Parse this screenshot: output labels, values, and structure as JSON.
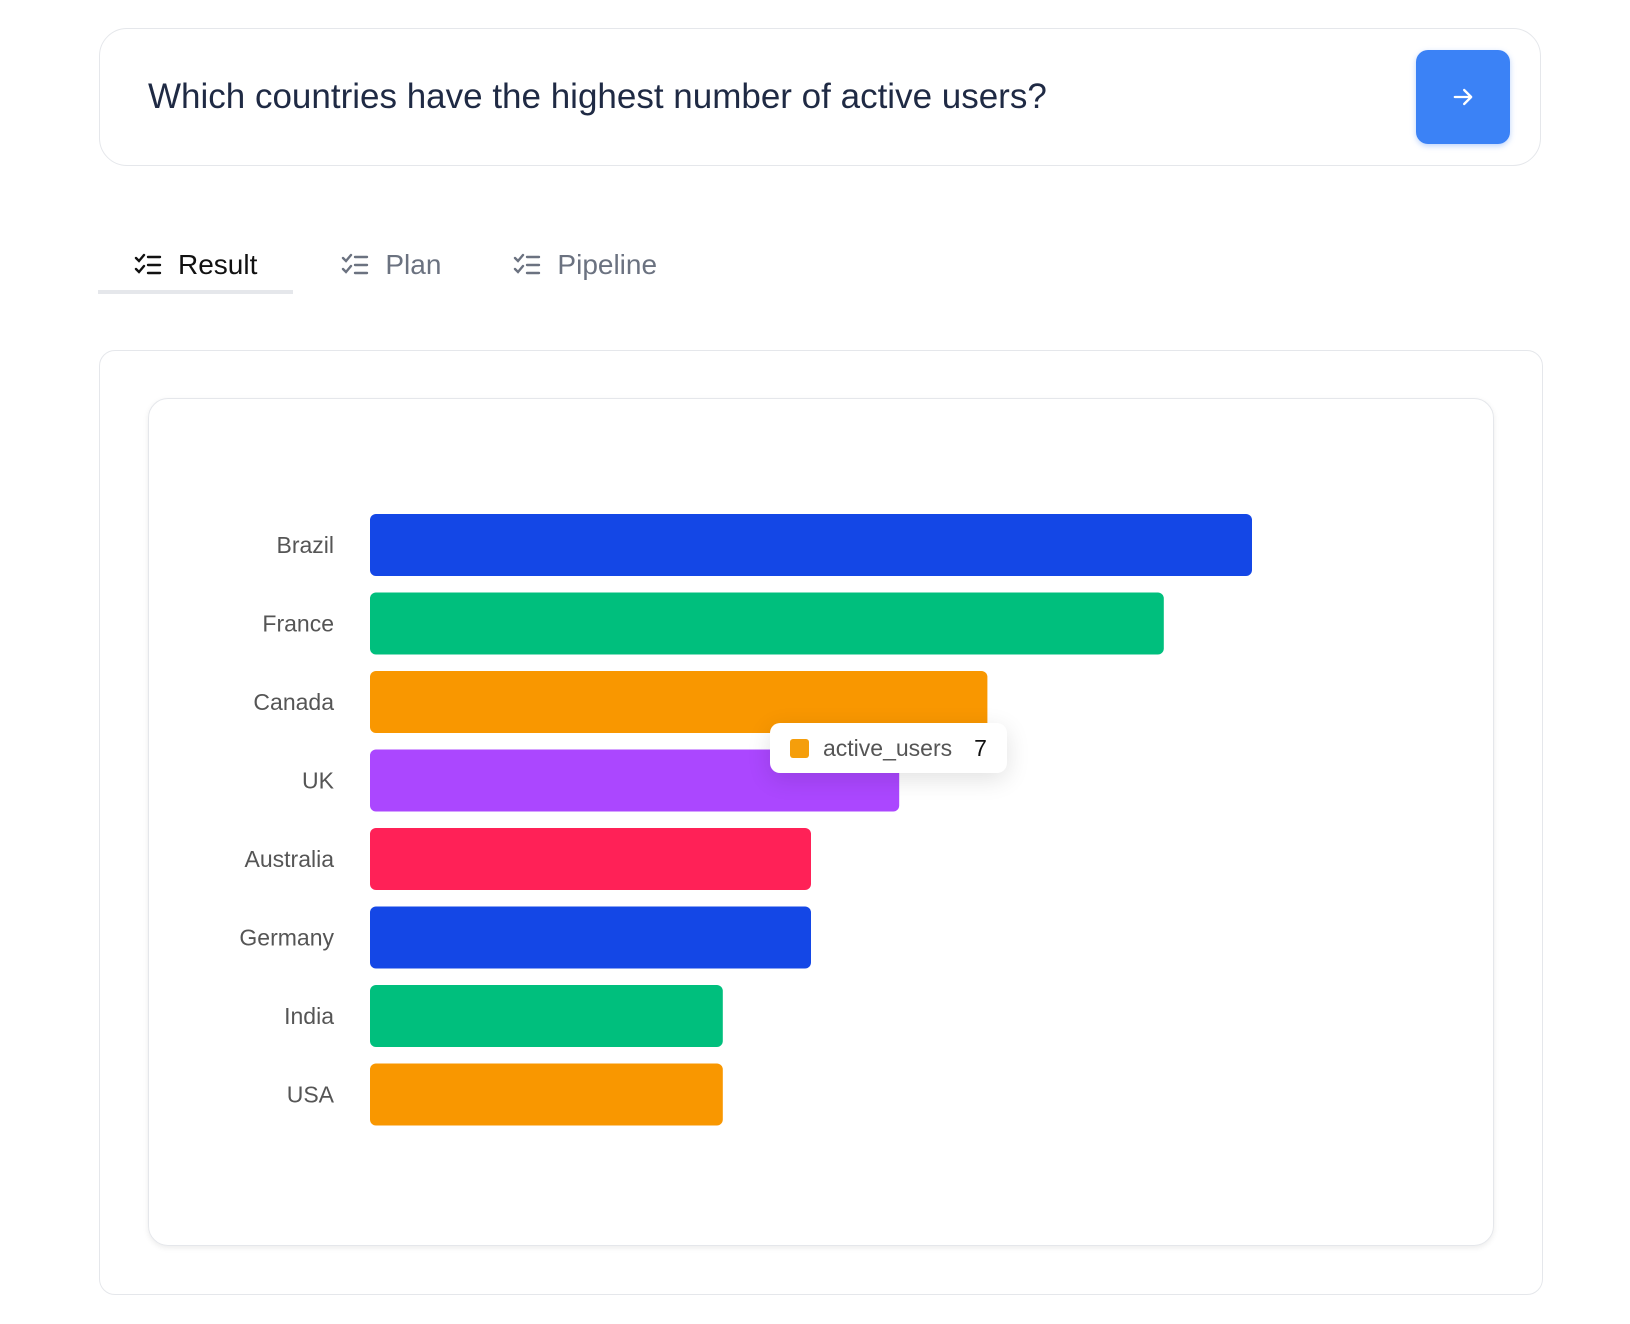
{
  "query": {
    "text": "Which countries have the highest number of active users?",
    "submit_icon": "arrow-right-icon"
  },
  "tabs": [
    {
      "label": "Result",
      "icon": "checklist-icon",
      "active": true
    },
    {
      "label": "Plan",
      "icon": "checklist-icon",
      "active": false
    },
    {
      "label": "Pipeline",
      "icon": "checklist-icon",
      "active": false
    }
  ],
  "tooltip": {
    "series": "active_users",
    "value": "7",
    "color": "#f59e0b"
  },
  "colors": {
    "accent": "#3b82f6"
  },
  "chart_data": {
    "type": "bar",
    "orientation": "horizontal",
    "categories": [
      "Brazil",
      "France",
      "Canada",
      "UK",
      "Australia",
      "Germany",
      "India",
      "USA"
    ],
    "series": [
      {
        "name": "active_users",
        "values": [
          10,
          9,
          7,
          6,
          5,
          5,
          4,
          4
        ]
      }
    ],
    "bar_colors": [
      "#1447e6",
      "#00bf7d",
      "#f99700",
      "#ab47ff",
      "#ff2157",
      "#1447e6",
      "#00bf7d",
      "#f99700"
    ],
    "xlim": [
      0,
      12
    ],
    "grid": false,
    "legend": "none"
  }
}
